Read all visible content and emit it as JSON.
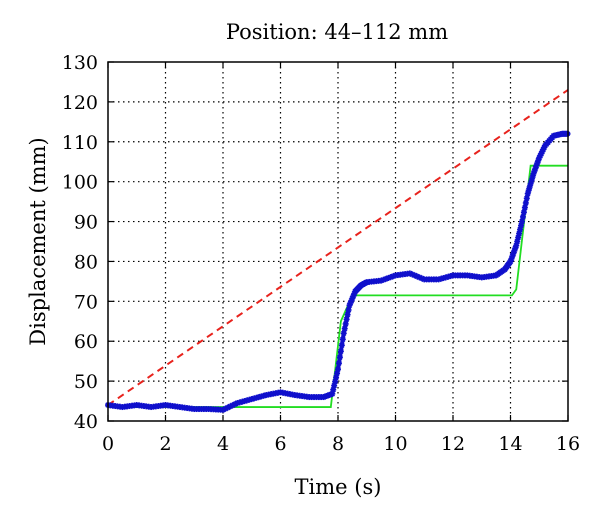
{
  "chart_data": {
    "type": "line",
    "title": "Position: 44–112 mm",
    "xlabel": "Time (s)",
    "ylabel": "Displacement (mm)",
    "xlim": [
      0,
      16
    ],
    "ylim": [
      40,
      130
    ],
    "xticks": [
      0,
      2,
      4,
      6,
      8,
      10,
      12,
      14,
      16
    ],
    "yticks": [
      40,
      50,
      60,
      70,
      80,
      90,
      100,
      110,
      120,
      130
    ],
    "grid": true,
    "series": [
      {
        "style": "dashed",
        "color": "#e8231d",
        "x": [
          0,
          16
        ],
        "y": [
          44,
          123
        ]
      },
      {
        "style": "solid",
        "color": "#22dd22",
        "x": [
          0,
          7.75,
          8.1,
          8.5,
          14.05,
          14.2,
          14.7,
          16
        ],
        "y": [
          43.5,
          43.5,
          65,
          71.5,
          71.5,
          73,
          104,
          104
        ]
      },
      {
        "style": "markers",
        "color": "#1010cc",
        "x": [
          0,
          0.5,
          1,
          1.5,
          2,
          2.5,
          3,
          3.5,
          4,
          4.5,
          5,
          5.5,
          6,
          6.5,
          7,
          7.5,
          7.8,
          8.0,
          8.2,
          8.4,
          8.6,
          8.8,
          9.0,
          9.5,
          10,
          10.5,
          11,
          11.5,
          12,
          12.5,
          13,
          13.5,
          13.8,
          14.0,
          14.2,
          14.4,
          14.6,
          14.8,
          15.0,
          15.2,
          15.5,
          15.8,
          16
        ],
        "y": [
          44,
          43.5,
          44,
          43.5,
          44,
          43.5,
          43,
          43,
          42.8,
          44.5,
          45.5,
          46.5,
          47.2,
          46.5,
          46,
          46,
          46.8,
          53,
          62,
          69,
          72.5,
          74,
          74.8,
          75.2,
          76.5,
          77,
          75.5,
          75.5,
          76.5,
          76.5,
          76,
          76.5,
          78,
          80,
          84,
          90,
          97,
          102,
          106,
          109,
          111.5,
          112,
          112
        ]
      }
    ]
  }
}
